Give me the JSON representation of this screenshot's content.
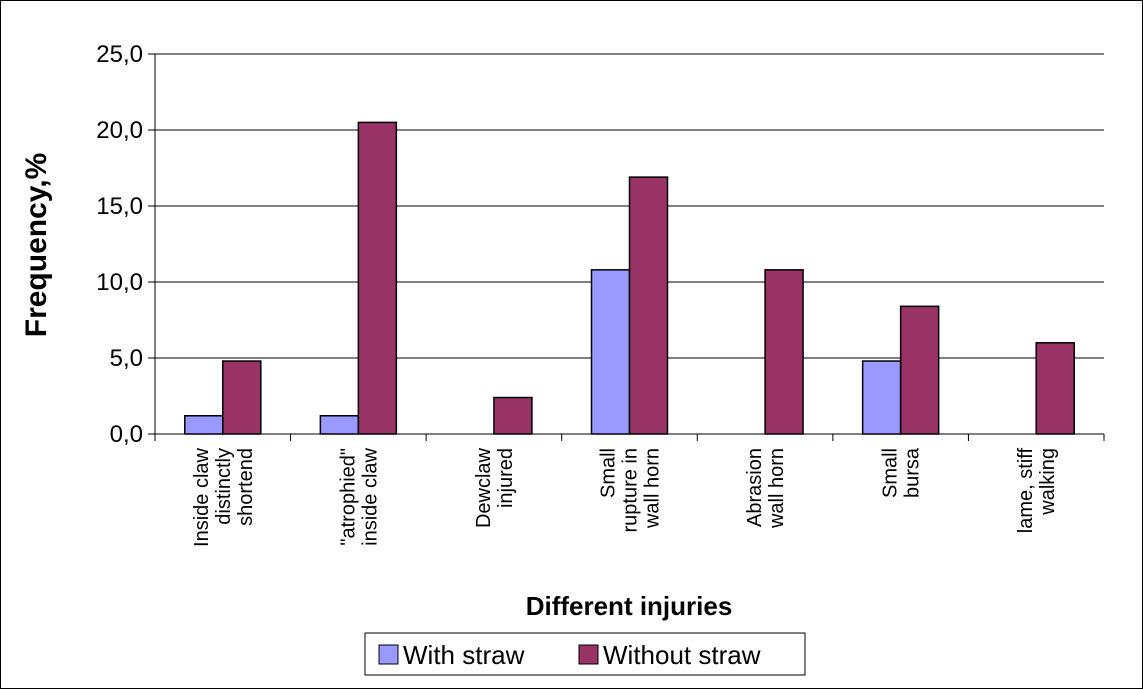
{
  "chart_data": {
    "type": "bar",
    "xlabel": "Different injuries",
    "ylabel": "Frequency,%",
    "ylim": [
      0,
      25
    ],
    "ytick_labels": [
      "0,0",
      "5,0",
      "10,0",
      "15,0",
      "20,0",
      "25,0"
    ],
    "grid": true,
    "legend_position": "bottom",
    "categories": [
      [
        "Inside claw",
        "distinctly",
        "shortend"
      ],
      [
        "\"atrophied\"",
        "inside claw"
      ],
      [
        "Dewclaw",
        "injured"
      ],
      [
        "Small",
        "rupture in",
        "wall horn"
      ],
      [
        "Abrasion",
        "wall horn"
      ],
      [
        "Small",
        "bursa"
      ],
      [
        "lame, stiff",
        "walking"
      ]
    ],
    "series": [
      {
        "name": "With straw",
        "color": "#9999ff",
        "values": [
          1.2,
          1.2,
          0,
          10.8,
          0,
          4.8,
          0
        ]
      },
      {
        "name": "Without straw",
        "color": "#993366",
        "values": [
          4.8,
          20.5,
          2.4,
          16.9,
          10.8,
          8.4,
          6.0
        ]
      }
    ]
  }
}
